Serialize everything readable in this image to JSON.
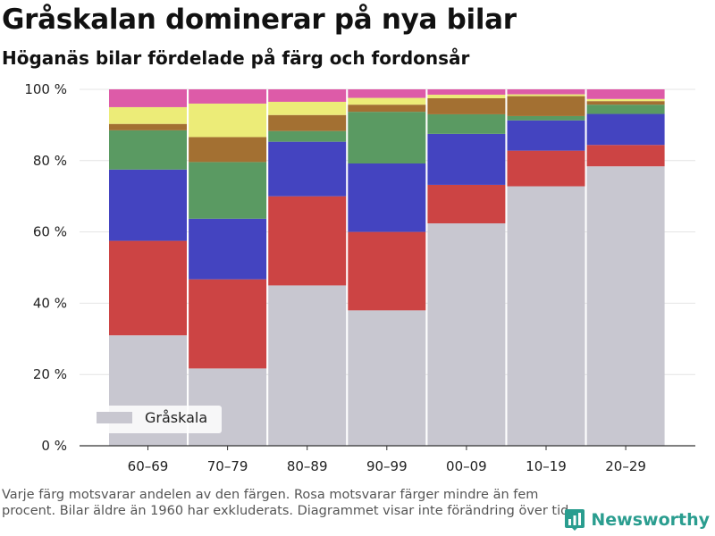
{
  "title": "Gråskalan dominerar på nya bilar",
  "subtitle": "Höganäs bilar fördelade på färg och fordonsår",
  "footnote": "Varje färg motsvarar andelen av den färgen. Rosa motsvarar färger mindre än fem procent. Bilar äldre än 1960 har exkluderats. Diagrammet visar inte förändring över tid.",
  "brand": {
    "name": "Newsworthy",
    "icon": "bar-chart-logo-icon"
  },
  "chart_data": {
    "type": "bar",
    "stacked": true,
    "categories": [
      "60–69",
      "70–79",
      "80–89",
      "90–99",
      "00–09",
      "10–19",
      "20–29"
    ],
    "ylim": [
      0,
      100
    ],
    "yticks": [
      0,
      20,
      40,
      60,
      80,
      100
    ],
    "ytick_labels": [
      "0 %",
      "20 %",
      "40 %",
      "60 %",
      "80 %",
      "100 %"
    ],
    "grid": true,
    "legend_position": "bottom-left",
    "legend": [
      {
        "label": "Gråskala",
        "color": "#c8c7d0"
      }
    ],
    "series": [
      {
        "name": "Gråskala",
        "color": "#c8c7d0",
        "values": [
          31,
          21.7,
          45,
          38,
          62.4,
          72.8,
          78.4
        ]
      },
      {
        "color": "#cc4444",
        "values": [
          26.5,
          25,
          25,
          22,
          10.8,
          10,
          6
        ]
      },
      {
        "color": "#4444c0",
        "values": [
          20,
          17,
          15.3,
          19.2,
          14.3,
          8.5,
          8.7
        ]
      },
      {
        "color": "#5a9a62",
        "values": [
          11,
          15.9,
          3,
          14.5,
          5.5,
          1.2,
          2.6
        ]
      },
      {
        "color": "#a37032",
        "values": [
          1.8,
          7,
          4.5,
          2,
          4.5,
          5.6,
          1
        ]
      },
      {
        "color": "#ecec78",
        "values": [
          4.7,
          9.4,
          3.7,
          1.9,
          1,
          0.5,
          0.6
        ]
      },
      {
        "color": "#dd5ba8",
        "values": [
          5,
          4,
          3.5,
          2.4,
          1.5,
          1.4,
          2.7
        ]
      }
    ]
  }
}
